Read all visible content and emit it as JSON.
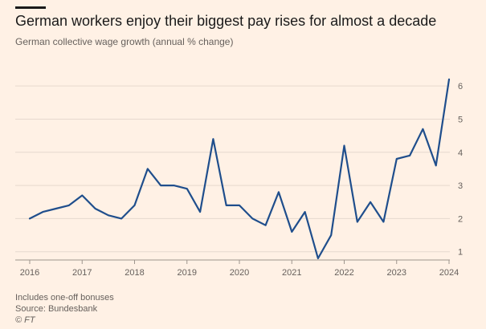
{
  "title": "German workers enjoy their biggest pay rises for almost a decade",
  "subtitle": "German collective wage growth (annual % change)",
  "footnote": "Includes one-off bonuses",
  "source": "Source: Bundesbank",
  "credit": "© FT",
  "colors": {
    "background": "#fff1e5",
    "line": "#1f4e8c",
    "grid": "#e6d9ce",
    "text": "#66605c"
  },
  "chart_data": {
    "type": "line",
    "title": "German workers enjoy their biggest pay rises for almost a decade",
    "subtitle": "German collective wage growth (annual % change)",
    "xlabel": "",
    "ylabel": "",
    "x_ticks": [
      "2016",
      "2017",
      "2018",
      "2019",
      "2020",
      "2021",
      "2022",
      "2023",
      "2024"
    ],
    "y_ticks": [
      1,
      2,
      3,
      4,
      5,
      6
    ],
    "xlim": [
      2016,
      2024
    ],
    "ylim": [
      0.8,
      6.4
    ],
    "grid": true,
    "y_axis_side": "right",
    "series": [
      {
        "x": [
          "2016-01",
          "2016-04",
          "2016-07",
          "2016-10",
          "2017-01",
          "2017-04",
          "2017-07",
          "2017-10",
          "2018-01",
          "2018-04",
          "2018-07",
          "2018-10",
          "2019-01",
          "2019-04",
          "2019-07",
          "2019-10",
          "2020-01",
          "2020-04",
          "2020-07",
          "2020-10",
          "2021-01",
          "2021-04",
          "2021-07",
          "2021-10",
          "2022-01",
          "2022-04",
          "2022-07",
          "2022-10",
          "2023-01",
          "2023-04",
          "2023-07",
          "2023-10",
          "2024-01"
        ],
        "values": [
          2.0,
          2.2,
          2.3,
          2.4,
          2.7,
          2.3,
          2.1,
          2.0,
          2.4,
          3.5,
          3.0,
          3.0,
          2.9,
          2.2,
          4.4,
          2.4,
          2.4,
          2.0,
          1.8,
          2.8,
          1.6,
          2.2,
          0.8,
          1.5,
          4.2,
          1.9,
          2.5,
          1.9,
          3.8,
          3.9,
          4.7,
          3.6,
          6.2
        ]
      }
    ]
  }
}
